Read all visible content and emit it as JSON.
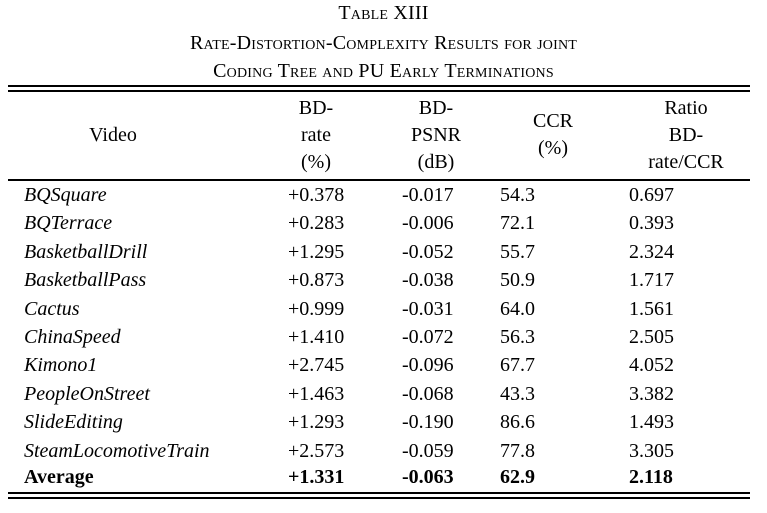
{
  "caption": {
    "line1": "Table XIII",
    "line2": "Rate-Distortion-Complexity Results for joint",
    "line3": "Coding Tree and PU Early Terminations"
  },
  "header": {
    "video": "Video",
    "bdrate": "BD-\nrate\n(%)",
    "bdpsnr": "BD-\nPSNR\n(dB)",
    "ccr": "CCR\n(%)",
    "ratio": "Ratio\nBD-\nrate/CCR"
  },
  "rows": [
    {
      "video": "BQSquare",
      "bdrate": "+0.378",
      "bdpsnr": "-0.017",
      "ccr": "54.3",
      "ratio": "0.697"
    },
    {
      "video": "BQTerrace",
      "bdrate": "+0.283",
      "bdpsnr": "-0.006",
      "ccr": "72.1",
      "ratio": "0.393"
    },
    {
      "video": "BasketballDrill",
      "bdrate": "+1.295",
      "bdpsnr": "-0.052",
      "ccr": "55.7",
      "ratio": "2.324"
    },
    {
      "video": "BasketballPass",
      "bdrate": "+0.873",
      "bdpsnr": "-0.038",
      "ccr": "50.9",
      "ratio": "1.717"
    },
    {
      "video": "Cactus",
      "bdrate": "+0.999",
      "bdpsnr": "-0.031",
      "ccr": "64.0",
      "ratio": "1.561"
    },
    {
      "video": "ChinaSpeed",
      "bdrate": "+1.410",
      "bdpsnr": "-0.072",
      "ccr": "56.3",
      "ratio": "2.505"
    },
    {
      "video": "Kimono1",
      "bdrate": "+2.745",
      "bdpsnr": "-0.096",
      "ccr": "67.7",
      "ratio": "4.052"
    },
    {
      "video": "PeopleOnStreet",
      "bdrate": "+1.463",
      "bdpsnr": "-0.068",
      "ccr": "43.3",
      "ratio": "3.382"
    },
    {
      "video": "SlideEditing",
      "bdrate": "+1.293",
      "bdpsnr": "-0.190",
      "ccr": "86.6",
      "ratio": "1.493"
    },
    {
      "video": "SteamLocomotiveTrain",
      "bdrate": "+2.573",
      "bdpsnr": "-0.059",
      "ccr": "77.8",
      "ratio": "3.305"
    }
  ],
  "average": {
    "video": "Average",
    "bdrate": "+1.331",
    "bdpsnr": "-0.063",
    "ccr": "62.9",
    "ratio": "2.118"
  }
}
